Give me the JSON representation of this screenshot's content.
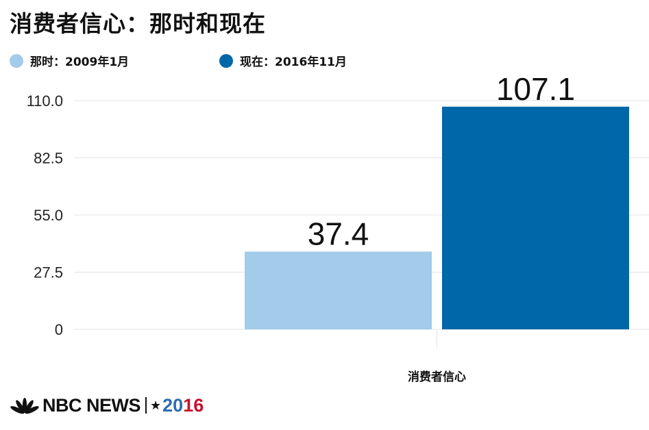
{
  "title": "消费者信心：那时和现在",
  "legend": [
    {
      "label": "那时：2009年1月",
      "color": "#a3cbea"
    },
    {
      "label": "现在：2016年11月",
      "color": "#0067a8"
    }
  ],
  "chart_data": {
    "type": "bar",
    "categories": [
      "消费者信心"
    ],
    "series": [
      {
        "name": "那时：2009年1月",
        "values": [
          37.4
        ],
        "color": "#a3cbea",
        "label": "37.4"
      },
      {
        "name": "现在：2016年11月",
        "values": [
          107.1
        ],
        "color": "#0067a8",
        "label": "107.1"
      }
    ],
    "yticks": [
      "0",
      "27.5",
      "55.0",
      "82.5",
      "110.0"
    ],
    "ylim": [
      0,
      110
    ],
    "grid": true,
    "legend_position": "top-left"
  },
  "footer": {
    "brand": "NBC NEWS",
    "year_part1": "20",
    "year_part2": "16",
    "colors": {
      "peacock": "#111111",
      "year_blue": "#2b6cb0",
      "year_red": "#c8102e"
    }
  }
}
